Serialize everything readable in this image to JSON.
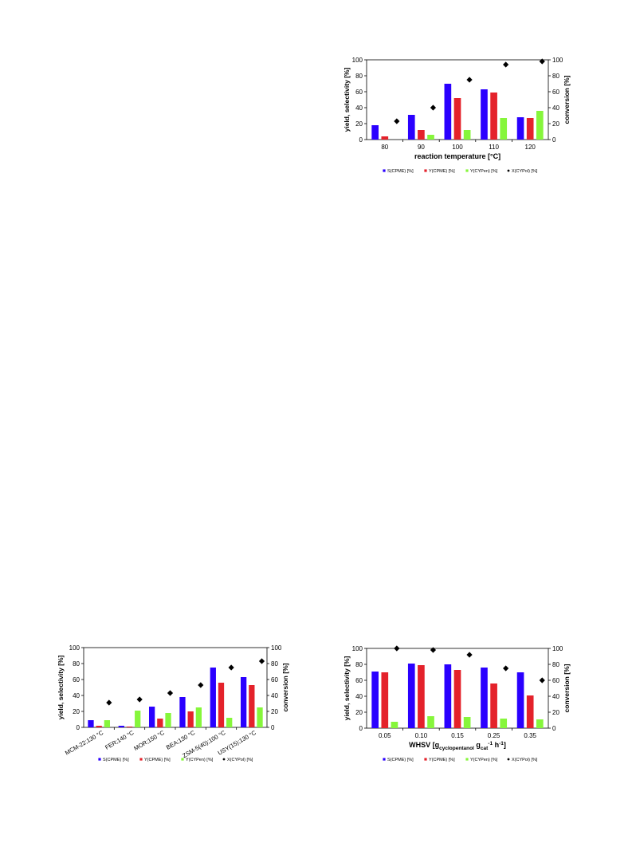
{
  "colors": {
    "s_cpme": "#2a00ff",
    "y_cpme": "#e4222b",
    "y_cypen": "#86f63b",
    "x_cypol": "#000000",
    "axis": "#000000"
  },
  "chart_data": [
    {
      "id": "temperature",
      "type": "bar",
      "xlabel": "reaction temperature [°C]",
      "xlabel_sub": null,
      "ylabel": "yield, selectivity [%]",
      "y2label": "conversion [%]",
      "ylim": [
        0,
        100
      ],
      "y2lim": [
        0,
        100
      ],
      "yticks": [
        "0",
        "20",
        "40",
        "60",
        "80",
        "100"
      ],
      "y2ticks": [
        "0",
        "20",
        "40",
        "60",
        "80",
        "100"
      ],
      "categories": [
        "80",
        "90",
        "100",
        "110",
        "120"
      ],
      "rotate_categories": false,
      "series": [
        {
          "name": "S(CPME) [%]",
          "type": "bar",
          "values": [
            18,
            31,
            70,
            63,
            28
          ]
        },
        {
          "name": "Y(CPME) [%]",
          "type": "bar",
          "values": [
            4,
            12,
            52,
            59,
            27
          ]
        },
        {
          "name": "Y(CYPen) [%]",
          "type": "bar",
          "values": [
            0,
            6,
            12,
            27,
            36
          ]
        },
        {
          "name": "X(CYPol) [%]",
          "type": "scatter",
          "axis": "y2",
          "values": [
            23,
            40,
            75,
            94,
            98
          ]
        }
      ],
      "legend_position": "bottom"
    },
    {
      "id": "catalyst",
      "type": "bar",
      "xlabel": "",
      "ylabel": "yield, selectivity [%]",
      "y2label": "conversion [%]",
      "ylim": [
        0,
        100
      ],
      "y2lim": [
        0,
        100
      ],
      "yticks": [
        "0",
        "20",
        "40",
        "60",
        "80",
        "100"
      ],
      "y2ticks": [
        "0",
        "20",
        "40",
        "60",
        "80",
        "100"
      ],
      "categories": [
        "MCM-22;130 °C",
        "FER;140 °C",
        "MOR;150 °C",
        "BEA;130 °C",
        "ZSM-5(40);100 °C",
        "USY(15);130 °C"
      ],
      "rotate_categories": true,
      "series": [
        {
          "name": "S(CPME) [%]",
          "type": "bar",
          "values": [
            9,
            2,
            26,
            38,
            75,
            63
          ]
        },
        {
          "name": "Y(CPME) [%]",
          "type": "bar",
          "values": [
            2,
            1,
            11,
            20,
            56,
            53
          ]
        },
        {
          "name": "Y(CYPen) [%]",
          "type": "bar",
          "values": [
            9,
            21,
            18,
            25,
            12,
            25
          ]
        },
        {
          "name": "X(CYPol) [%]",
          "type": "scatter",
          "axis": "y2",
          "values": [
            31,
            35,
            43,
            53,
            75,
            83
          ]
        }
      ],
      "legend_position": "bottom"
    },
    {
      "id": "whsv",
      "type": "bar",
      "xlabel": "WHSV [g",
      "xlabel_sub": "cyclopentanol",
      "xlabel_mid": " g",
      "xlabel_sub2": "cat",
      "xlabel_sup": "-1",
      "xlabel_end": " h",
      "xlabel_sup2": "-1",
      "xlabel_close": "]",
      "ylabel": "yield, selectivity [%]",
      "y2label": "conversion [%]",
      "ylim": [
        0,
        100
      ],
      "y2lim": [
        0,
        100
      ],
      "yticks": [
        "0",
        "20",
        "40",
        "60",
        "80",
        "100"
      ],
      "y2ticks": [
        "0",
        "20",
        "40",
        "60",
        "80",
        "100"
      ],
      "categories": [
        "0.05",
        "0.10",
        "0.15",
        "0.25",
        "0.35"
      ],
      "rotate_categories": false,
      "series": [
        {
          "name": "S(CPME) [%]",
          "type": "bar",
          "values": [
            71,
            81,
            80,
            76,
            70
          ]
        },
        {
          "name": "Y(CPME) [%]",
          "type": "bar",
          "values": [
            70,
            79,
            73,
            56,
            41
          ]
        },
        {
          "name": "Y(CYPen) [%]",
          "type": "bar",
          "values": [
            8,
            15,
            14,
            12,
            11
          ]
        },
        {
          "name": "X(CYPol) [%]",
          "type": "scatter",
          "axis": "y2",
          "values": [
            100,
            98,
            92,
            75,
            60
          ]
        }
      ],
      "legend_position": "bottom"
    }
  ]
}
